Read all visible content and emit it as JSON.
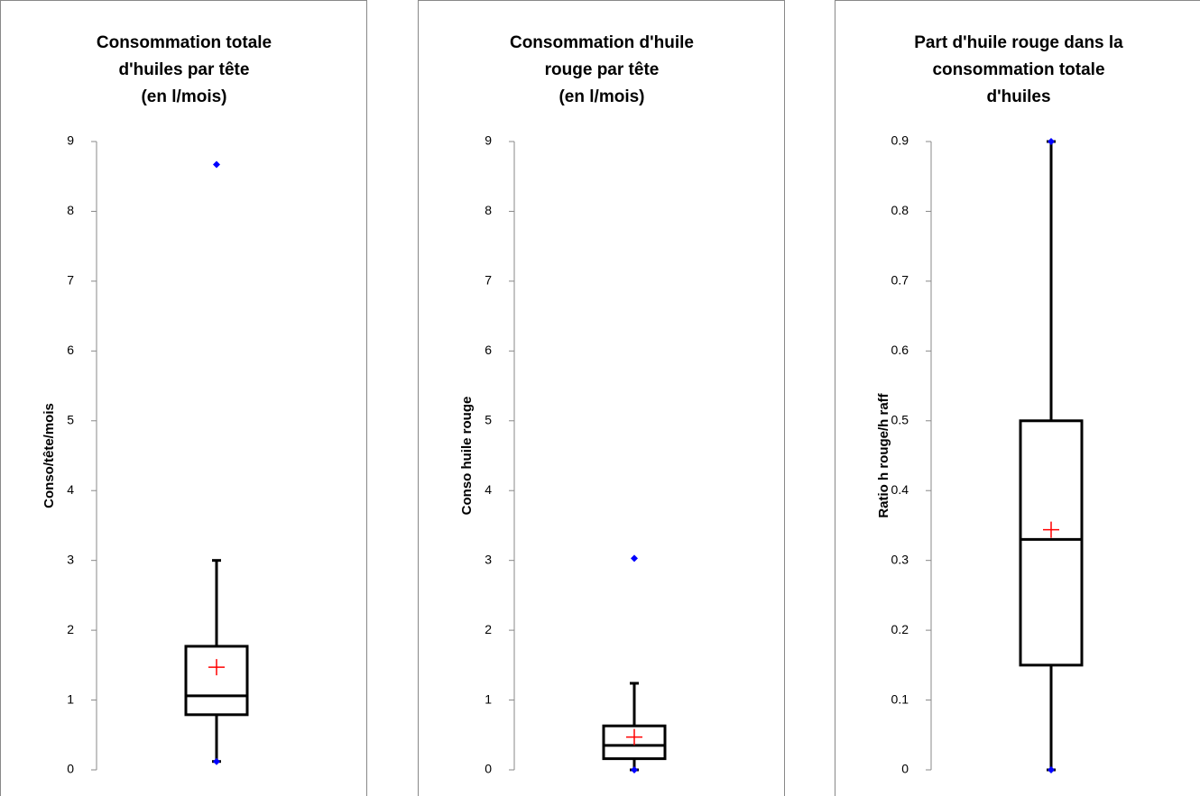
{
  "chart_data": [
    {
      "type": "box",
      "title": [
        "Consommation totale",
        "d'huiles par tête",
        "(en l/mois)"
      ],
      "ylabel": "Conso/tête/mois",
      "ylim": [
        0,
        9
      ],
      "yticks": [
        0,
        1,
        2,
        3,
        4,
        5,
        6,
        7,
        8,
        9
      ],
      "whisker_low": 0.12,
      "q1": 0.79,
      "median": 1.06,
      "q3": 1.77,
      "whisker_high": 3,
      "mean": 1.47,
      "points": [
        8.67,
        0.12
      ],
      "color": "#000000",
      "mean_color": "#ff0000",
      "point_color": "#0000ff"
    },
    {
      "type": "box",
      "title": [
        "Consommation d'huile",
        "rouge par tête",
        "(en l/mois)"
      ],
      "ylabel": "Conso huile rouge",
      "ylim": [
        0,
        9
      ],
      "yticks": [
        0,
        1,
        2,
        3,
        4,
        5,
        6,
        7,
        8,
        9
      ],
      "whisker_low": 0,
      "q1": 0.16,
      "median": 0.35,
      "q3": 0.63,
      "whisker_high": 1.24,
      "mean": 0.47,
      "points": [
        3.03,
        0
      ],
      "color": "#000000",
      "mean_color": "#ff0000",
      "point_color": "#0000ff"
    },
    {
      "type": "box",
      "title": [
        "Part d'huile rouge dans la",
        "consommation totale",
        "d'huiles"
      ],
      "ylabel": "Ratio h rouge/h raff",
      "ylim": [
        0,
        0.9
      ],
      "yticks": [
        0,
        0.1,
        0.2,
        0.3,
        0.4,
        0.5,
        0.6,
        0.7,
        0.8,
        0.9
      ],
      "whisker_low": 0,
      "q1": 0.15,
      "median": 0.33,
      "q3": 0.5,
      "whisker_high": 0.9,
      "mean": 0.344,
      "points": [
        0.9,
        0
      ],
      "color": "#000000",
      "mean_color": "#ff0000",
      "point_color": "#0000ff"
    }
  ]
}
